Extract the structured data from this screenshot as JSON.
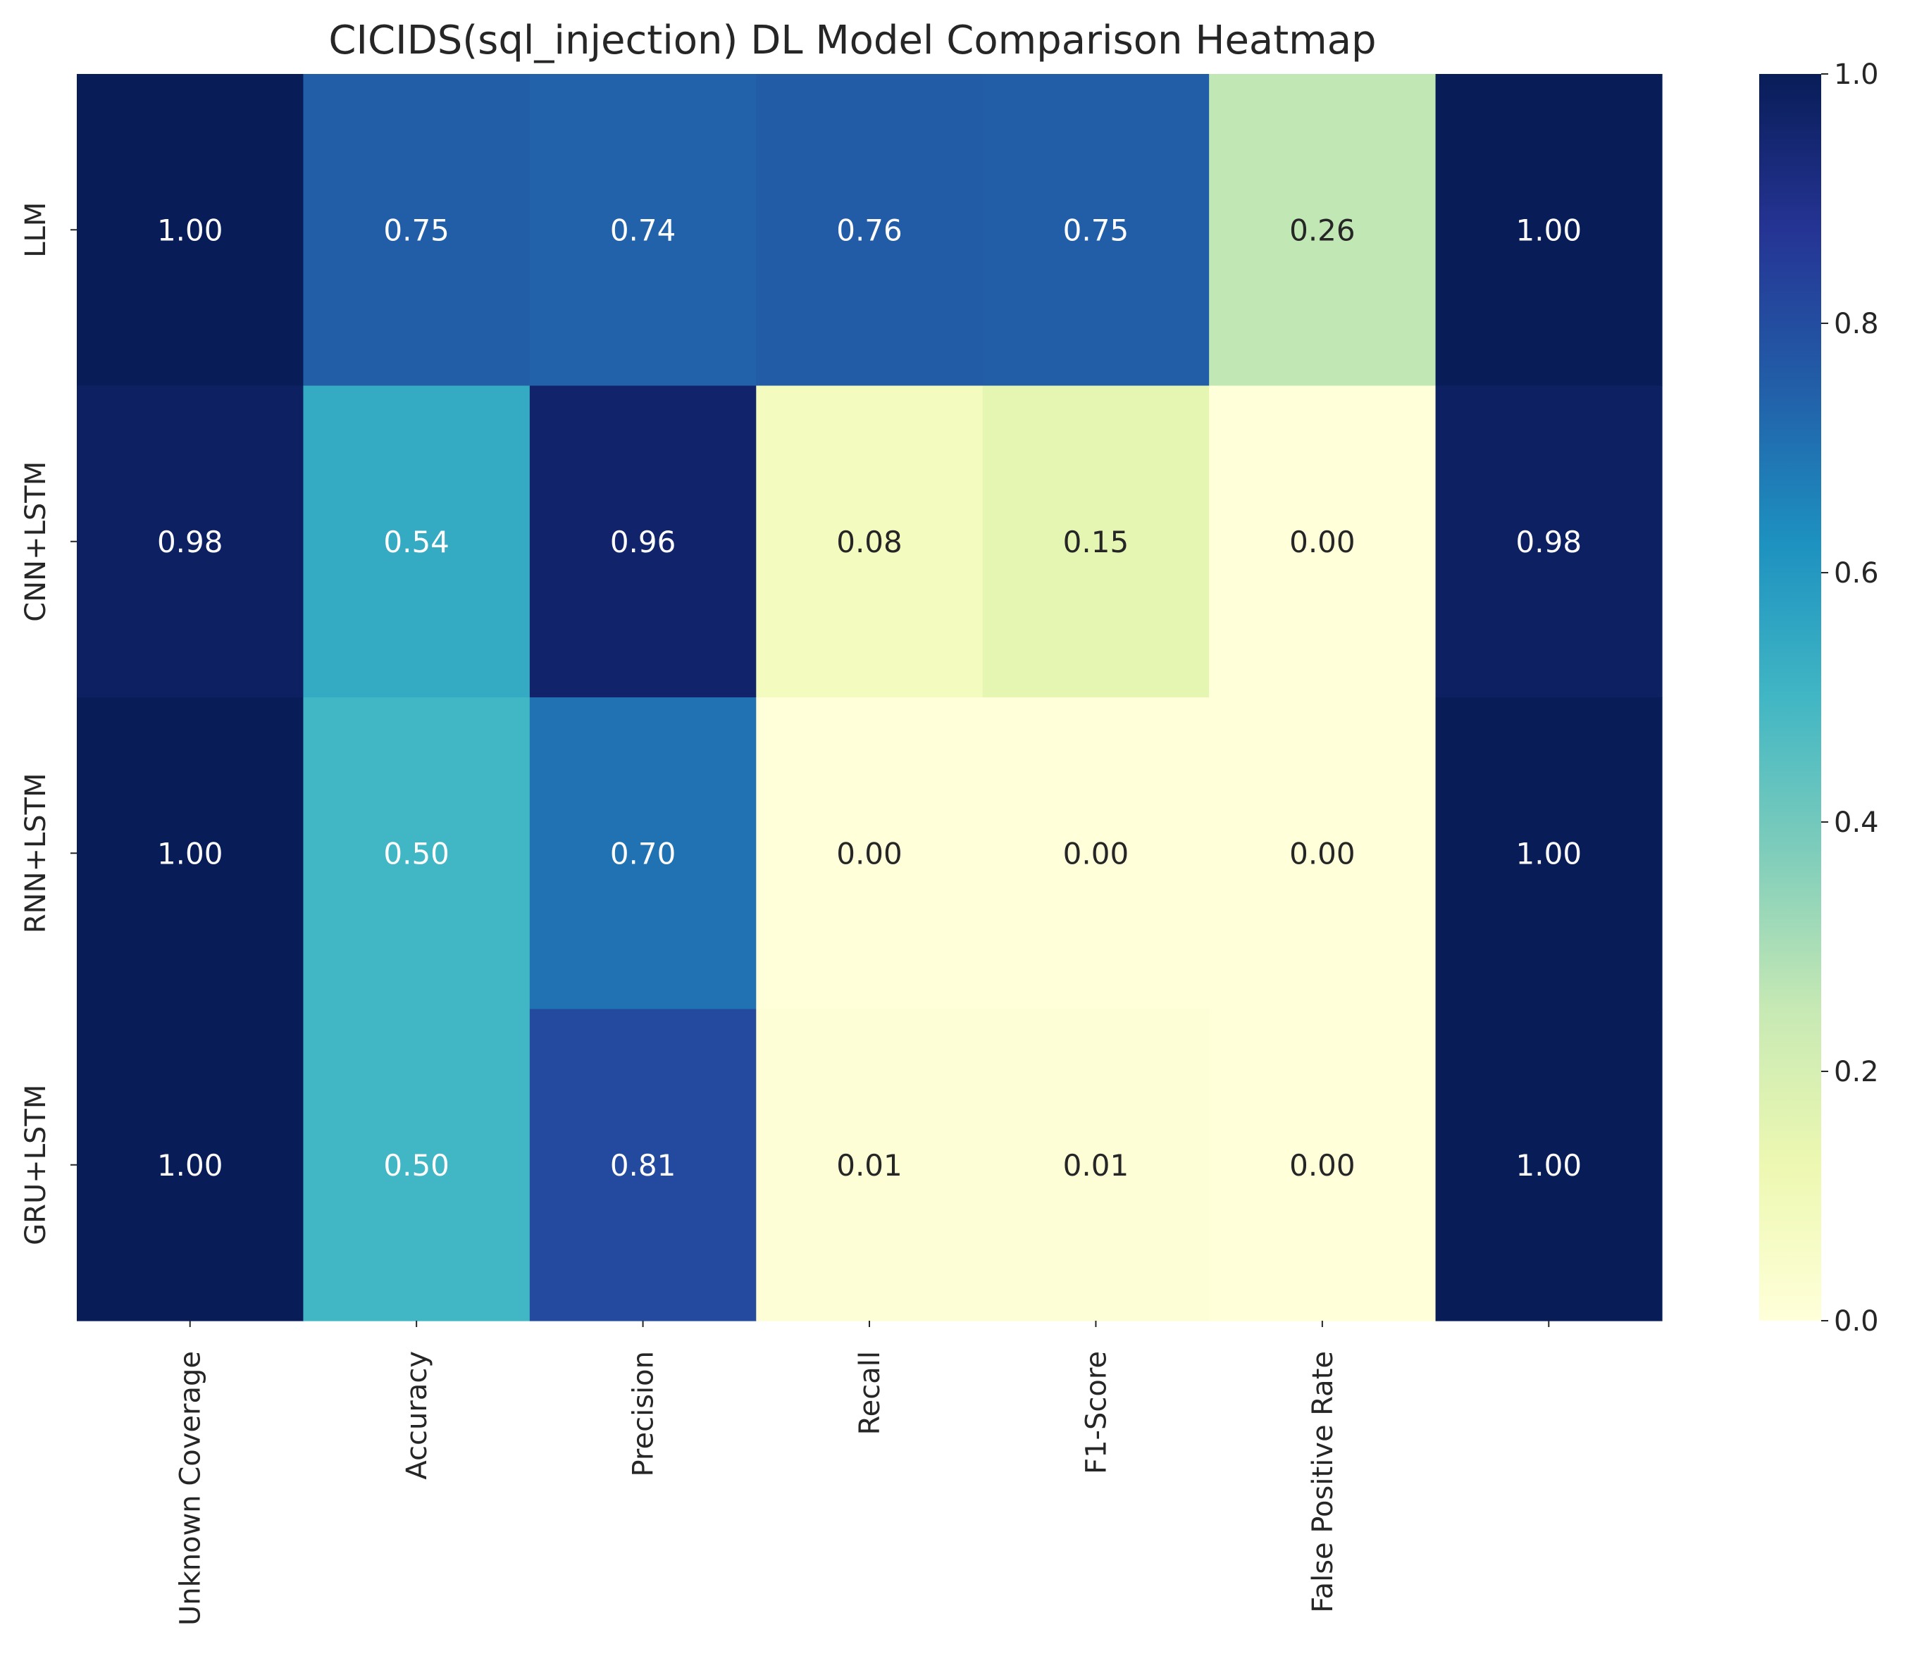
{
  "chart_data": {
    "type": "heatmap",
    "title": "CICIDS(sql_injection) DL Model Comparison Heatmap",
    "rows": [
      "LLM",
      "CNN+LSTM",
      "RNN+LSTM",
      "GRU+LSTM"
    ],
    "columns": [
      "Unknown Coverage",
      "Accuracy",
      "Precision",
      "Recall",
      "F1-Score",
      "False Positive Rate",
      ""
    ],
    "values": [
      [
        1.0,
        0.75,
        0.74,
        0.76,
        0.75,
        0.26,
        1.0
      ],
      [
        0.98,
        0.54,
        0.96,
        0.08,
        0.15,
        0.0,
        0.98
      ],
      [
        1.0,
        0.5,
        0.7,
        0.0,
        0.0,
        0.0,
        1.0
      ],
      [
        1.0,
        0.5,
        0.81,
        0.01,
        0.01,
        0.0,
        1.0
      ]
    ],
    "value_format": "0.00",
    "colormap": "YlGnBu",
    "vmin": 0.0,
    "vmax": 1.0,
    "colorbar_ticks": [
      "0.0",
      "0.2",
      "0.4",
      "0.6",
      "0.8",
      "1.0"
    ],
    "colorbar_tick_values": [
      0.0,
      0.2,
      0.4,
      0.6,
      0.8,
      1.0
    ],
    "legend_placement": "right colorbar",
    "grid": false
  }
}
